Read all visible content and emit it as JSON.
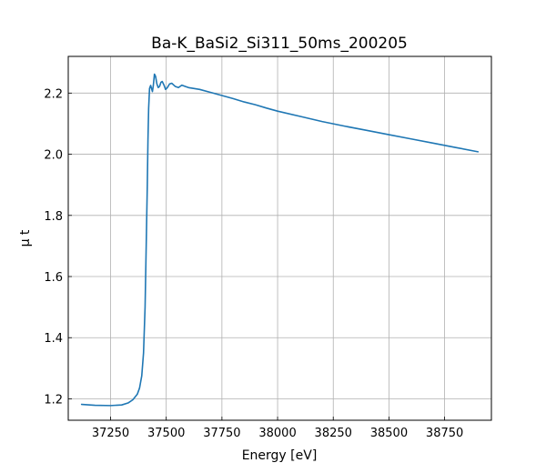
{
  "chart_data": {
    "type": "line",
    "title": "Ba-K_BaSi2_Si311_50ms_200205",
    "xlabel": "Energy [eV]",
    "ylabel": "μ t",
    "xlim": [
      37060,
      38960
    ],
    "ylim": [
      1.13,
      2.32
    ],
    "xticks": [
      37250,
      37500,
      37750,
      38000,
      38250,
      38500,
      38750
    ],
    "yticks": [
      1.2,
      1.4,
      1.6,
      1.8,
      2.0,
      2.2
    ],
    "grid": true,
    "color": "#1f77b4",
    "series": [
      {
        "points": [
          [
            37120,
            1.182
          ],
          [
            37180,
            1.179
          ],
          [
            37250,
            1.178
          ],
          [
            37300,
            1.18
          ],
          [
            37330,
            1.187
          ],
          [
            37350,
            1.197
          ],
          [
            37370,
            1.215
          ],
          [
            37380,
            1.235
          ],
          [
            37390,
            1.275
          ],
          [
            37398,
            1.35
          ],
          [
            37405,
            1.5
          ],
          [
            37410,
            1.7
          ],
          [
            37415,
            1.9
          ],
          [
            37418,
            2.05
          ],
          [
            37421,
            2.15
          ],
          [
            37425,
            2.215
          ],
          [
            37430,
            2.225
          ],
          [
            37434,
            2.215
          ],
          [
            37438,
            2.205
          ],
          [
            37442,
            2.225
          ],
          [
            37447,
            2.262
          ],
          [
            37452,
            2.255
          ],
          [
            37458,
            2.23
          ],
          [
            37464,
            2.218
          ],
          [
            37470,
            2.222
          ],
          [
            37476,
            2.235
          ],
          [
            37482,
            2.238
          ],
          [
            37490,
            2.226
          ],
          [
            37497,
            2.212
          ],
          [
            37505,
            2.218
          ],
          [
            37515,
            2.23
          ],
          [
            37525,
            2.232
          ],
          [
            37540,
            2.222
          ],
          [
            37555,
            2.218
          ],
          [
            37570,
            2.226
          ],
          [
            37585,
            2.222
          ],
          [
            37600,
            2.218
          ],
          [
            37650,
            2.212
          ],
          [
            37700,
            2.202
          ],
          [
            37750,
            2.192
          ],
          [
            37800,
            2.182
          ],
          [
            37850,
            2.171
          ],
          [
            37900,
            2.162
          ],
          [
            37950,
            2.151
          ],
          [
            38000,
            2.141
          ],
          [
            38100,
            2.124
          ],
          [
            38200,
            2.107
          ],
          [
            38300,
            2.092
          ],
          [
            38400,
            2.078
          ],
          [
            38500,
            2.064
          ],
          [
            38600,
            2.05
          ],
          [
            38700,
            2.036
          ],
          [
            38800,
            2.022
          ],
          [
            38900,
            2.008
          ]
        ]
      }
    ]
  }
}
